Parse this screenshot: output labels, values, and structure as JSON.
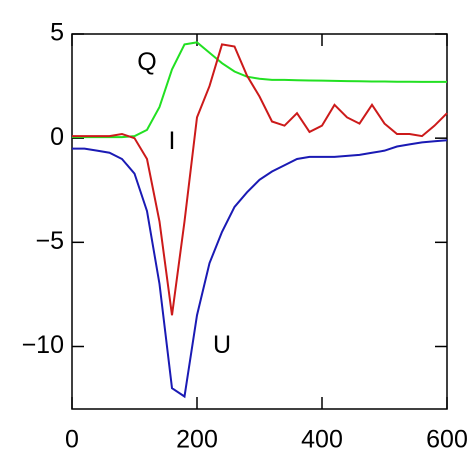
{
  "chart_data": {
    "type": "line",
    "x": [
      0,
      20,
      40,
      60,
      80,
      100,
      120,
      140,
      160,
      180,
      200,
      220,
      240,
      260,
      280,
      300,
      320,
      340,
      360,
      380,
      400,
      420,
      440,
      460,
      480,
      500,
      520,
      540,
      560,
      580,
      600
    ],
    "series": [
      {
        "name": "Q",
        "color": "#22e022",
        "values": [
          0.05,
          0.05,
          0.05,
          0.05,
          0.05,
          0.1,
          0.4,
          1.5,
          3.3,
          4.5,
          4.6,
          4.1,
          3.6,
          3.2,
          2.95,
          2.85,
          2.8,
          2.8,
          2.78,
          2.77,
          2.76,
          2.75,
          2.74,
          2.73,
          2.72,
          2.72,
          2.71,
          2.71,
          2.7,
          2.7,
          2.7
        ]
      },
      {
        "name": "I",
        "color": "#cc1a1a",
        "values": [
          0.1,
          0.1,
          0.1,
          0.1,
          0.2,
          0,
          -1,
          -4,
          -8.5,
          -4,
          1,
          2.5,
          4.5,
          4.4,
          3,
          2,
          0.8,
          0.6,
          1.2,
          0.3,
          0.6,
          1.6,
          1.0,
          0.7,
          1.6,
          0.7,
          0.2,
          0.2,
          0.1,
          0.6,
          1.2
        ]
      },
      {
        "name": "U",
        "color": "#1a1ab4",
        "values": [
          -0.5,
          -0.5,
          -0.6,
          -0.7,
          -1,
          -1.7,
          -3.5,
          -7,
          -12,
          -12.4,
          -8.5,
          -6,
          -4.5,
          -3.3,
          -2.6,
          -2,
          -1.6,
          -1.3,
          -1,
          -0.9,
          -0.9,
          -0.9,
          -0.85,
          -0.8,
          -0.7,
          -0.6,
          -0.4,
          -0.3,
          -0.2,
          -0.15,
          -0.1
        ]
      }
    ],
    "annotations": [
      {
        "text": "Q",
        "x": 120,
        "y": 3.6
      },
      {
        "text": "I",
        "x": 160,
        "y": -0.2
      },
      {
        "text": "U",
        "x": 240,
        "y": -10
      }
    ],
    "xlim": [
      0,
      600
    ],
    "ylim": [
      -13,
      5
    ],
    "xticks": [
      0,
      200,
      400,
      600
    ],
    "yticks": [
      {
        "value": -10,
        "label": "−10"
      },
      {
        "value": -5,
        "label": "−5"
      },
      0,
      5
    ]
  }
}
